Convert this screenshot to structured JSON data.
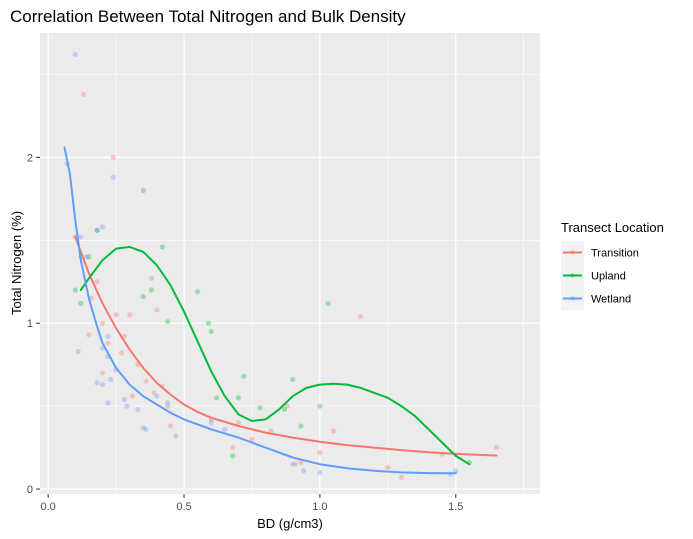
{
  "chart_data": {
    "type": "scatter",
    "title": "Correlation Between Total Nitrogen and Bulk Density",
    "xlabel": "BD (g/cm3)",
    "ylabel": "Total Nitrogen (%)",
    "xlim": [
      -0.03,
      1.81
    ],
    "ylim": [
      -0.03,
      2.75
    ],
    "x_ticks": [
      0.0,
      0.5,
      1.0,
      1.5
    ],
    "x_tick_labels": [
      "0.0",
      "0.5",
      "1.0",
      "1.5"
    ],
    "y_ticks": [
      0,
      1,
      2
    ],
    "y_tick_labels": [
      "0",
      "1",
      "2"
    ],
    "grid": true,
    "legend": {
      "title": "Transect Location",
      "position": "right"
    },
    "series": [
      {
        "name": "Transition",
        "color": "#F8766D",
        "points": [
          [
            0.1,
            1.52
          ],
          [
            0.13,
            2.38
          ],
          [
            0.16,
            1.15
          ],
          [
            0.18,
            1.25
          ],
          [
            0.2,
            1.0
          ],
          [
            0.22,
            0.88
          ],
          [
            0.24,
            2.0
          ],
          [
            0.25,
            1.05
          ],
          [
            0.28,
            0.92
          ],
          [
            0.3,
            1.05
          ],
          [
            0.33,
            0.75
          ],
          [
            0.36,
            0.65
          ],
          [
            0.39,
            0.58
          ],
          [
            0.4,
            1.08
          ],
          [
            0.42,
            0.62
          ],
          [
            0.44,
            0.5
          ],
          [
            0.15,
            0.93
          ],
          [
            0.12,
            1.4
          ],
          [
            0.6,
            0.42
          ],
          [
            0.7,
            0.4
          ],
          [
            0.75,
            0.3
          ],
          [
            0.82,
            0.35
          ],
          [
            0.88,
            0.5
          ],
          [
            0.91,
            0.15
          ],
          [
            0.93,
            0.16
          ],
          [
            1.0,
            0.22
          ],
          [
            1.05,
            0.35
          ],
          [
            1.15,
            1.04
          ],
          [
            1.25,
            0.13
          ],
          [
            1.3,
            0.07
          ],
          [
            1.45,
            0.21
          ],
          [
            1.65,
            0.25
          ],
          [
            0.2,
            0.7
          ],
          [
            0.27,
            0.82
          ],
          [
            0.31,
            0.56
          ],
          [
            0.45,
            0.38
          ],
          [
            0.68,
            0.25
          ]
        ],
        "smooth": [
          [
            0.1,
            1.52
          ],
          [
            0.15,
            1.3
          ],
          [
            0.2,
            1.12
          ],
          [
            0.25,
            0.97
          ],
          [
            0.3,
            0.84
          ],
          [
            0.35,
            0.73
          ],
          [
            0.4,
            0.64
          ],
          [
            0.45,
            0.57
          ],
          [
            0.5,
            0.51
          ],
          [
            0.55,
            0.465
          ],
          [
            0.6,
            0.43
          ],
          [
            0.7,
            0.38
          ],
          [
            0.8,
            0.34
          ],
          [
            0.9,
            0.31
          ],
          [
            1.0,
            0.285
          ],
          [
            1.1,
            0.265
          ],
          [
            1.2,
            0.25
          ],
          [
            1.3,
            0.235
          ],
          [
            1.4,
            0.222
          ],
          [
            1.5,
            0.212
          ],
          [
            1.6,
            0.205
          ],
          [
            1.65,
            0.202
          ]
        ]
      },
      {
        "name": "Upland",
        "color": "#00BA38",
        "points": [
          [
            0.1,
            1.2
          ],
          [
            0.12,
            1.12
          ],
          [
            0.15,
            1.4
          ],
          [
            0.18,
            1.56
          ],
          [
            0.35,
            1.8
          ],
          [
            0.42,
            1.46
          ],
          [
            0.38,
            1.2
          ],
          [
            0.35,
            1.16
          ],
          [
            0.44,
            1.01
          ],
          [
            0.55,
            1.19
          ],
          [
            0.59,
            1.0
          ],
          [
            0.6,
            0.95
          ],
          [
            0.62,
            0.55
          ],
          [
            0.68,
            0.2
          ],
          [
            0.7,
            0.55
          ],
          [
            0.72,
            0.68
          ],
          [
            0.78,
            0.49
          ],
          [
            0.87,
            0.48
          ],
          [
            0.9,
            0.66
          ],
          [
            0.93,
            0.38
          ],
          [
            1.0,
            0.5
          ],
          [
            1.03,
            1.12
          ],
          [
            1.55,
            0.16
          ]
        ],
        "smooth": [
          [
            0.12,
            1.2
          ],
          [
            0.15,
            1.27
          ],
          [
            0.2,
            1.38
          ],
          [
            0.25,
            1.45
          ],
          [
            0.3,
            1.46
          ],
          [
            0.35,
            1.43
          ],
          [
            0.4,
            1.35
          ],
          [
            0.45,
            1.23
          ],
          [
            0.5,
            1.07
          ],
          [
            0.55,
            0.89
          ],
          [
            0.6,
            0.71
          ],
          [
            0.65,
            0.56
          ],
          [
            0.7,
            0.45
          ],
          [
            0.75,
            0.41
          ],
          [
            0.8,
            0.42
          ],
          [
            0.85,
            0.48
          ],
          [
            0.9,
            0.56
          ],
          [
            0.95,
            0.61
          ],
          [
            1.0,
            0.63
          ],
          [
            1.05,
            0.635
          ],
          [
            1.1,
            0.63
          ],
          [
            1.15,
            0.61
          ],
          [
            1.2,
            0.58
          ],
          [
            1.25,
            0.55
          ],
          [
            1.3,
            0.5
          ],
          [
            1.35,
            0.44
          ],
          [
            1.4,
            0.36
          ],
          [
            1.45,
            0.28
          ],
          [
            1.5,
            0.2
          ],
          [
            1.55,
            0.15
          ]
        ]
      },
      {
        "name": "Wetland",
        "color": "#619CFF",
        "points": [
          [
            0.07,
            1.96
          ],
          [
            0.1,
            2.62
          ],
          [
            0.11,
            0.83
          ],
          [
            0.12,
            1.52
          ],
          [
            0.14,
            1.4
          ],
          [
            0.18,
            1.56
          ],
          [
            0.2,
            1.58
          ],
          [
            0.2,
            0.85
          ],
          [
            0.22,
            0.92
          ],
          [
            0.22,
            0.8
          ],
          [
            0.24,
            1.88
          ],
          [
            0.25,
            0.72
          ],
          [
            0.18,
            0.64
          ],
          [
            0.23,
            0.66
          ],
          [
            0.2,
            0.63
          ],
          [
            0.22,
            0.52
          ],
          [
            0.28,
            0.54
          ],
          [
            0.29,
            0.5
          ],
          [
            0.33,
            0.48
          ],
          [
            0.35,
            0.37
          ],
          [
            0.36,
            0.36
          ],
          [
            0.38,
            1.27
          ],
          [
            0.4,
            0.56
          ],
          [
            0.44,
            0.52
          ],
          [
            0.47,
            0.32
          ],
          [
            0.6,
            0.4
          ],
          [
            0.65,
            0.36
          ],
          [
            0.9,
            0.15
          ],
          [
            0.94,
            0.11
          ],
          [
            1.0,
            0.1
          ],
          [
            1.48,
            0.09
          ],
          [
            1.5,
            0.11
          ]
        ],
        "smooth": [
          [
            0.06,
            2.06
          ],
          [
            0.08,
            1.9
          ],
          [
            0.1,
            1.62
          ],
          [
            0.12,
            1.38
          ],
          [
            0.15,
            1.15
          ],
          [
            0.18,
            0.98
          ],
          [
            0.2,
            0.88
          ],
          [
            0.25,
            0.73
          ],
          [
            0.3,
            0.63
          ],
          [
            0.35,
            0.56
          ],
          [
            0.4,
            0.51
          ],
          [
            0.45,
            0.46
          ],
          [
            0.5,
            0.42
          ],
          [
            0.6,
            0.36
          ],
          [
            0.7,
            0.31
          ],
          [
            0.8,
            0.25
          ],
          [
            0.9,
            0.19
          ],
          [
            1.0,
            0.15
          ],
          [
            1.1,
            0.125
          ],
          [
            1.2,
            0.11
          ],
          [
            1.3,
            0.1
          ],
          [
            1.4,
            0.096
          ],
          [
            1.5,
            0.095
          ]
        ]
      }
    ]
  }
}
